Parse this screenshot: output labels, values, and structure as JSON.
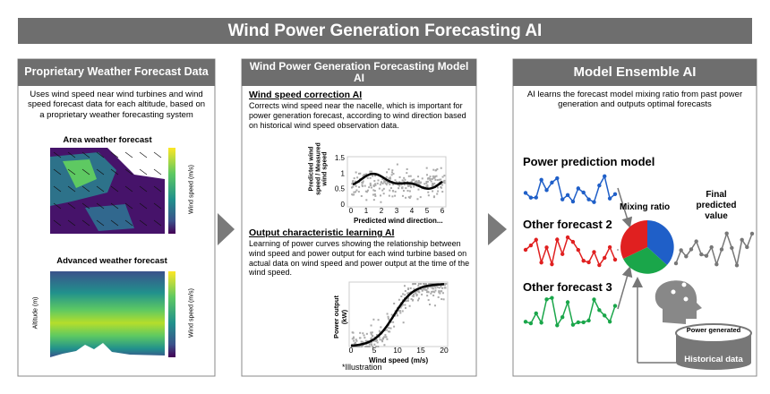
{
  "title": "Wind Power Generation Forecasting AI",
  "panels": [
    {
      "header": "Proprietary Weather Forecast Data",
      "description": "Uses wind speed near wind turbines and wind speed forecast data for each altitude, based on a proprietary weather forecasting system",
      "maps": [
        {
          "title": "Area weather forecast",
          "colorbar_label": "Wind speed (m/s)"
        },
        {
          "title": "Advanced weather forecast",
          "y_label": "Altitude (m)",
          "colorbar_label": "Wind speed (m/s)"
        }
      ]
    },
    {
      "header": "Wind Power Generation Forecasting Model AI",
      "sections": [
        {
          "title": "Wind speed correction AI",
          "text": "Corrects wind speed near the nacelle, which is important for power generation forecast, according to wind direction based on historical wind speed observation data.",
          "chart": {
            "y_label": "Predicted wind speed / Measured wind speed",
            "x_label": "Predicted wind direction...",
            "xticks": [
              0,
              1,
              2,
              3,
              4,
              5,
              6
            ],
            "yticks": [
              0,
              0.5,
              1,
              1.5
            ]
          }
        },
        {
          "title": "Output characteristic learning AI",
          "text": "Learning of power curves showing the relationship between wind speed and power output for each wind turbine based on actual data on wind speed and power output at the time of the wind speed.",
          "chart": {
            "y_label": "Power output (kW)",
            "x_label": "Wind speed (m/s)",
            "xticks": [
              0,
              5,
              10,
              15,
              20
            ]
          }
        }
      ],
      "note": "*Illustration"
    },
    {
      "header": "Model Ensemble AI",
      "description": "AI learns the forecast model mixing ratio from past power generation and outputs optimal forecasts",
      "models": [
        "Power prediction model",
        "Other forecast 2",
        "Other forecast 3"
      ],
      "mixing_ratio": "Mixing ratio",
      "final": "Final predicted value",
      "power_generated": "Power generated",
      "historical": "Historical data"
    }
  ]
}
